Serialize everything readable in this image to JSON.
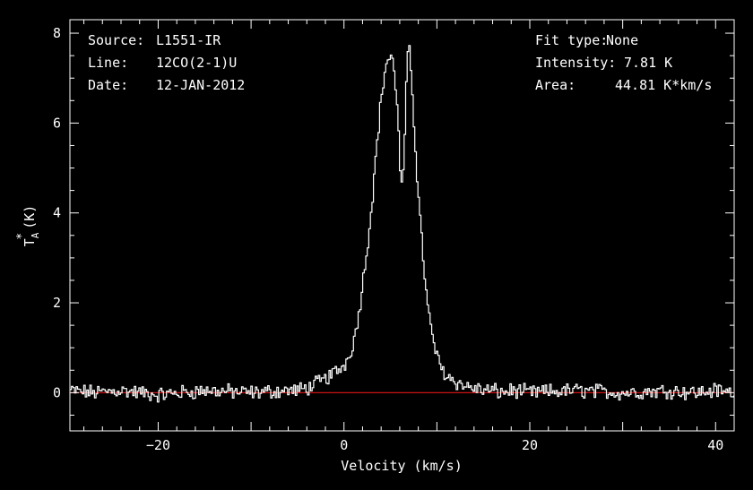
{
  "info_left": [
    {
      "key": "Source:",
      "value": "L1551-IR"
    },
    {
      "key": "Line:",
      "value": "12CO(2-1)U"
    },
    {
      "key": "Date:",
      "value": "12-JAN-2012"
    }
  ],
  "info_right": [
    {
      "key": "Fit type:",
      "value": "None"
    },
    {
      "key": "Intensity:",
      "value": "7.81 K"
    },
    {
      "key": "Area:",
      "value": "44.81 K*km/s"
    }
  ],
  "colors": {
    "background": "#000000",
    "foreground": "#ffffff",
    "baseline": "#cc1111"
  },
  "chart_data": {
    "type": "line",
    "style": "step",
    "xlabel": "Velocity (km/s)",
    "ylabel": {
      "base": "T",
      "sub": "A",
      "sup": "*",
      "unit": "(K)"
    },
    "xlim": [
      -29.5,
      42
    ],
    "ylim": [
      -0.85,
      8.3
    ],
    "xticks": [
      -20,
      0,
      20,
      40
    ],
    "yticks": [
      0,
      2,
      4,
      6,
      8
    ],
    "grid": false,
    "legend": "none",
    "baseline_y": 0,
    "series": [
      {
        "x": [
          -29.5,
          -27.0,
          -24.0,
          -20.0,
          -15.0,
          -10.0,
          -6.0,
          -5.0,
          -4.0,
          -3.0,
          -2.0,
          -1.0,
          0.0,
          0.5,
          1.0,
          1.5,
          2.0,
          2.5,
          3.0,
          3.5,
          4.0,
          4.5,
          5.0,
          5.4,
          5.8,
          6.0,
          6.2,
          6.5,
          6.8,
          7.0,
          7.3,
          7.6,
          8.0,
          8.5,
          9.0,
          9.5,
          10.0,
          10.5,
          11.0,
          12.0,
          13.0,
          14.0,
          15.0,
          16.0,
          17.0,
          18.0,
          20.0,
          25.0,
          30.0,
          35.0,
          38.0,
          40.0,
          42.0
        ],
        "y": [
          0.05,
          0.0,
          0.05,
          -0.05,
          0.05,
          0.0,
          0.05,
          0.05,
          0.1,
          0.2,
          0.3,
          0.45,
          0.6,
          0.8,
          1.1,
          1.6,
          2.4,
          3.2,
          4.2,
          5.4,
          6.5,
          7.3,
          7.5,
          7.2,
          6.3,
          5.1,
          4.5,
          5.3,
          7.3,
          7.8,
          7.0,
          5.8,
          4.4,
          3.1,
          1.9,
          1.3,
          0.8,
          0.55,
          0.4,
          0.25,
          0.15,
          0.1,
          0.05,
          0.05,
          0.0,
          0.05,
          0.0,
          0.05,
          0.0,
          0.05,
          0.0,
          0.05,
          0.0
        ]
      }
    ]
  }
}
